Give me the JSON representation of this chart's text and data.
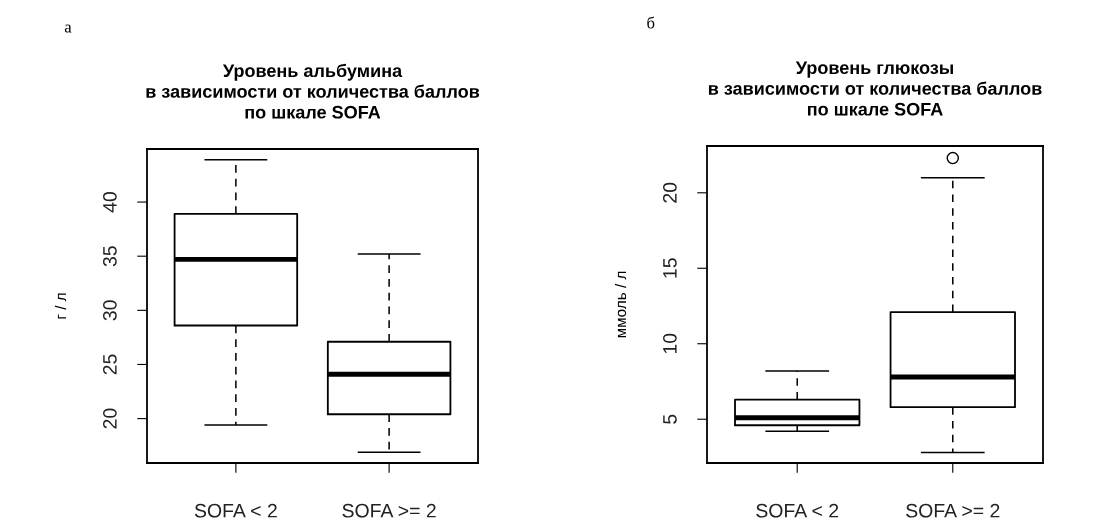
{
  "chart_data": [
    {
      "type": "box",
      "title": "Уровень альбумина\nв зависимости от количества баллов\nпо шкале SOFA",
      "ylabel": "г / л",
      "annotations": [
        "а"
      ],
      "categories": [
        "SOFA < 2",
        "SOFA >= 2"
      ],
      "ylim": [
        15.9,
        44.9
      ],
      "yticks": [
        20,
        25,
        30,
        35,
        40
      ],
      "grid": false,
      "boxes": [
        {
          "low": 19.4,
          "q1": 28.6,
          "median": 34.7,
          "q3": 38.9,
          "high": 43.9
        },
        {
          "low": 16.9,
          "q1": 20.4,
          "median": 24.1,
          "q3": 27.1,
          "high": 35.2
        }
      ]
    },
    {
      "type": "box",
      "title": "Уровень глюкозы\nв зависимости от количества баллов\nпо шкале SOFA",
      "ylabel": "ммоль / л",
      "annotations": [
        "б"
      ],
      "categories": [
        "SOFA < 2",
        "SOFA >= 2"
      ],
      "ylim": [
        2.1,
        23.1
      ],
      "yticks": [
        5,
        10,
        15,
        20
      ],
      "grid": false,
      "boxes": [
        {
          "low": 4.2,
          "q1": 4.6,
          "median": 5.1,
          "q3": 6.3,
          "high": 8.2
        },
        {
          "low": 2.8,
          "q1": 5.8,
          "median": 7.8,
          "q3": 12.1,
          "high": 21.0,
          "outliers": [
            22.3
          ]
        }
      ]
    }
  ]
}
